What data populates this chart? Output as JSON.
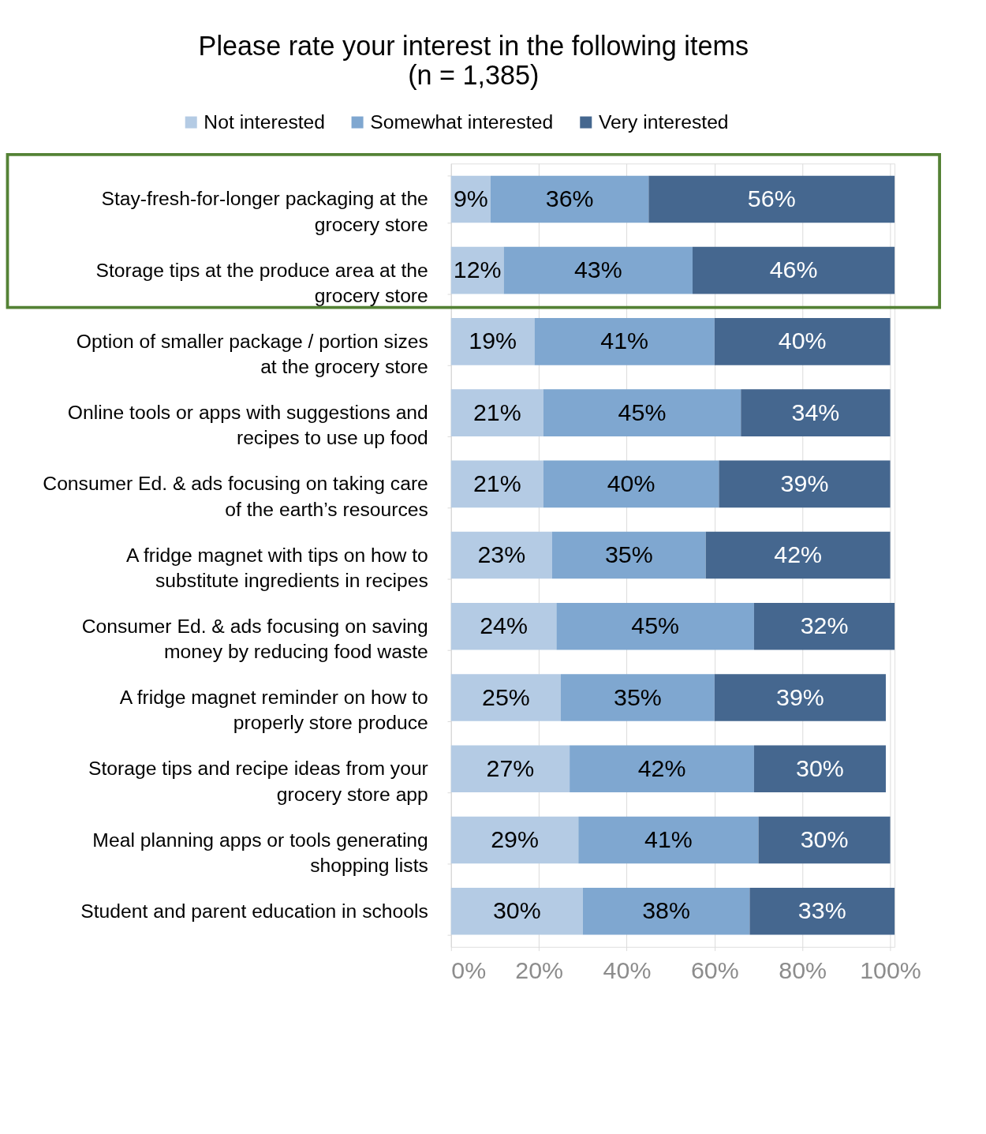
{
  "chart_data": {
    "type": "bar",
    "orientation": "horizontal",
    "stacked": true,
    "title": "Please rate your interest in the following items",
    "subtitle": "(n = 1,385)",
    "categories": [
      "Stay-fresh-for-longer packaging at the grocery store",
      "Storage tips at the produce area at the grocery store",
      "Option of smaller package / portion sizes at the grocery store",
      "Online tools or apps with suggestions and recipes to use up food",
      "Consumer Ed. & ads focusing on taking care of the earth’s resources",
      "A fridge magnet with tips on how to substitute ingredients in recipes",
      "Consumer Ed. & ads focusing on saving money by reducing food waste",
      "A fridge magnet reminder on how to properly store produce",
      "Storage tips and recipe ideas from your grocery store app",
      "Meal planning apps or tools generating shopping lists",
      "Student and parent education in schools"
    ],
    "series": [
      {
        "name": "Not interested",
        "color": "#b4cbe4",
        "values": [
          9,
          12,
          19,
          21,
          21,
          23,
          24,
          25,
          27,
          29,
          30
        ],
        "value_labels": [
          "9%",
          "12%",
          "19%",
          "21%",
          "21%",
          "23%",
          "24%",
          "25%",
          "27%",
          "29%",
          "30%"
        ]
      },
      {
        "name": "Somewhat interested",
        "color": "#7fa7d0",
        "values": [
          36,
          43,
          41,
          45,
          40,
          35,
          45,
          35,
          42,
          41,
          38
        ],
        "value_labels": [
          "36%",
          "43%",
          "41%",
          "45%",
          "40%",
          "35%",
          "45%",
          "35%",
          "42%",
          "41%",
          "38%"
        ]
      },
      {
        "name": "Very interested",
        "color": "#45678f",
        "values": [
          56,
          46,
          40,
          34,
          39,
          42,
          32,
          39,
          30,
          30,
          33
        ],
        "value_labels": [
          "56%",
          "46%",
          "40%",
          "34%",
          "39%",
          "42%",
          "32%",
          "39%",
          "30%",
          "30%",
          "33%"
        ]
      }
    ],
    "xlim": [
      0,
      101
    ],
    "xticks": [
      {
        "value": 0,
        "label": "0%"
      },
      {
        "value": 20,
        "label": "20%"
      },
      {
        "value": 40,
        "label": "40%"
      },
      {
        "value": 60,
        "label": "60%"
      },
      {
        "value": 80,
        "label": "80%"
      },
      {
        "value": 100,
        "label": "100%"
      }
    ],
    "grid": "x",
    "legend": "top"
  }
}
